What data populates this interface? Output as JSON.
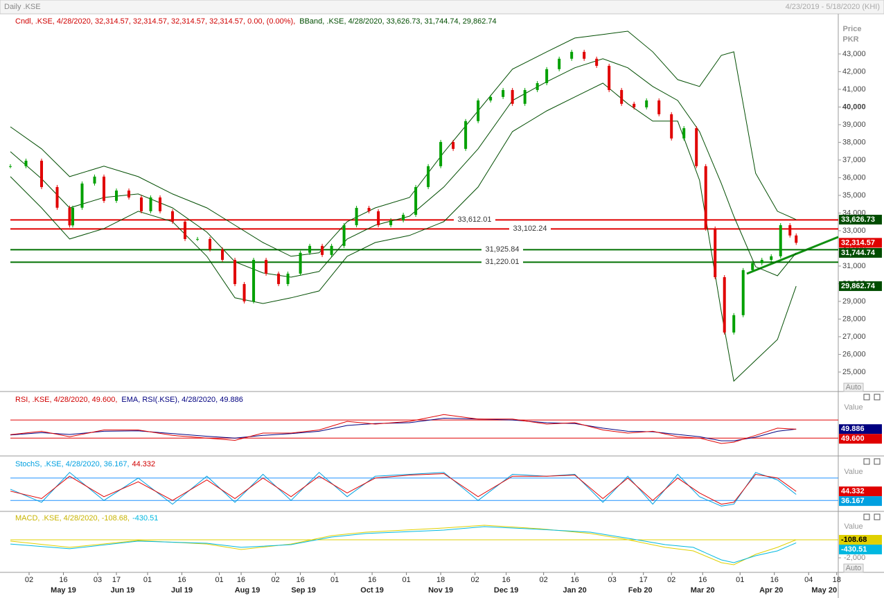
{
  "chart_data": [
    {
      "type": "candlestick",
      "title": "Daily .KSE",
      "subtitle": "4/23/2019 - 5/18/2020 (KHI)",
      "legend": [
        "Cndl, .KSE, 4/28/2020, 32,314.57, 32,314.57, 32,314.57, 32,314.57, 0.00, (0.00%),",
        "BBand, .KSE, 4/28/2020, 33,626.73, 31,744.74, 29,862.74"
      ],
      "y_label": "Price",
      "y_unit": "PKR",
      "scale_mode": "Auto",
      "xlim": [
        0,
        265.5
      ],
      "ylim": [
        23900,
        45270
      ],
      "up_color": "#00a000",
      "down_color": "#e00000",
      "x": [
        0,
        5,
        10,
        15,
        19,
        20,
        23,
        27,
        30,
        34,
        38,
        42,
        45,
        48,
        52,
        56,
        60,
        64,
        68,
        72,
        75,
        78,
        82,
        86,
        89,
        93,
        96,
        100,
        103,
        107,
        111,
        115,
        118,
        122,
        126,
        130,
        134,
        138,
        142,
        146,
        150,
        154,
        158,
        161,
        165,
        169,
        172,
        176,
        180,
        184,
        188,
        192,
        196,
        200,
        204,
        208,
        212,
        216,
        220,
        223,
        226,
        229,
        232,
        235,
        238,
        241,
        244,
        247,
        250,
        252
      ],
      "close": [
        36650,
        36960,
        35470,
        34300,
        33300,
        34300,
        35670,
        36060,
        34690,
        35270,
        34880,
        34100,
        34880,
        34100,
        33510,
        32530,
        32530,
        31940,
        31350,
        29980,
        29000,
        31350,
        30570,
        29980,
        30570,
        31750,
        32140,
        31630,
        32140,
        33310,
        34290,
        34100,
        33310,
        33590,
        33900,
        35470,
        36650,
        38020,
        37630,
        39200,
        40370,
        40570,
        40960,
        40180,
        40960,
        41350,
        42140,
        42730,
        43120,
        42730,
        42330,
        40960,
        40180,
        39980,
        40370,
        39590,
        38220,
        38800,
        36650,
        33120,
        30370,
        27240,
        28220,
        30770,
        31160,
        31350,
        31550,
        33310,
        32730,
        32314.57
      ],
      "close_color": "#e00000",
      "close_label": "32,314.57",
      "bands": {
        "x": [
          0,
          10,
          19,
          30,
          41,
          52,
          63,
          72,
          81,
          90,
          99,
          108,
          117,
          128,
          139,
          150,
          161,
          172,
          181,
          190,
          198,
          206,
          214,
          221,
          228,
          232,
          239,
          246,
          252
        ],
        "color": "#004d00",
        "series": [
          {
            "values": [
              38880,
              37630,
              36060,
              36650,
              36060,
              35080,
              34290,
              33310,
              32330,
              31550,
              31750,
              33510,
              34290,
              34880,
              37430,
              39780,
              42140,
              43120,
              43900,
              44100,
              44290,
              43120,
              41550,
              41160,
              42920,
              43120,
              36250,
              34100,
              33626.73
            ],
            "last_label": "33,626.73",
            "box_color": "#004d00"
          },
          {
            "values": [
              37470,
              35940,
              34290,
              34880,
              35080,
              34290,
              32920,
              31240,
              30610,
              30370,
              30690,
              32530,
              33310,
              33820,
              35470,
              37630,
              40370,
              41430,
              42220,
              42730,
              42220,
              41160,
              40370,
              38610,
              35670,
              33820,
              30960,
              30450,
              31744.74
            ],
            "last_label": "31,744.74",
            "box_color": "#004d00"
          },
          {
            "values": [
              36060,
              34290,
              32530,
              33120,
              34100,
              33510,
              31550,
              29200,
              28880,
              29200,
              29590,
              31550,
              32330,
              32730,
              33510,
              35470,
              38610,
              39780,
              40570,
              41350,
              40180,
              39200,
              39200,
              35860,
              28410,
              24490,
              25670,
              26840,
              29862.74
            ],
            "last_label": "29,862.74",
            "box_color": "#004d00"
          }
        ]
      },
      "levels": [
        {
          "value": 33612.01,
          "label": "33,612.01",
          "color": "#e00000"
        },
        {
          "value": 33102.24,
          "label": "33,102.24",
          "color": "#e00000"
        },
        {
          "value": 31925.84,
          "label": "31,925.84",
          "color": "#007000"
        },
        {
          "value": 31220.01,
          "label": "31,220.01",
          "color": "#007000"
        }
      ],
      "yticks": [
        {
          "value": 25000,
          "label": "25,000"
        },
        {
          "value": 26000,
          "label": "26,000"
        },
        {
          "value": 27000,
          "label": "27,000"
        },
        {
          "value": 28000,
          "label": "28,000"
        },
        {
          "value": 29000,
          "label": "29,000"
        },
        {
          "value": 30000,
          "label": "30,000"
        },
        {
          "value": 31000,
          "label": "31,000"
        },
        {
          "value": 32000,
          "label": "32,000"
        },
        {
          "value": 33000,
          "label": "33,000"
        },
        {
          "value": 34000,
          "label": "34,000"
        },
        {
          "value": 35000,
          "label": "35,000"
        },
        {
          "value": 36000,
          "label": "36,000"
        },
        {
          "value": 37000,
          "label": "37,000"
        },
        {
          "value": 38000,
          "label": "38,000"
        },
        {
          "value": 39000,
          "label": "39,000"
        },
        {
          "value": 40000,
          "label": "40,000",
          "bold": true
        },
        {
          "value": 41000,
          "label": "41,000"
        },
        {
          "value": 42000,
          "label": "42,000"
        },
        {
          "value": 43000,
          "label": "43,000"
        }
      ],
      "xticks": [
        {
          "value": 6,
          "label": "02"
        },
        {
          "value": 17,
          "label": "16"
        },
        {
          "value": 28,
          "label": "03"
        },
        {
          "value": 34,
          "label": "17"
        },
        {
          "value": 44,
          "label": "01"
        },
        {
          "value": 55,
          "label": "16"
        },
        {
          "value": 67,
          "label": "01"
        },
        {
          "value": 74,
          "label": "16"
        },
        {
          "value": 85,
          "label": "02"
        },
        {
          "value": 93,
          "label": "16"
        },
        {
          "value": 104,
          "label": "01"
        },
        {
          "value": 116,
          "label": "16"
        },
        {
          "value": 127,
          "label": "01"
        },
        {
          "value": 138,
          "label": "18"
        },
        {
          "value": 149,
          "label": "02"
        },
        {
          "value": 159,
          "label": "16"
        },
        {
          "value": 171,
          "label": "02"
        },
        {
          "value": 181,
          "label": "16"
        },
        {
          "value": 193,
          "label": "03"
        },
        {
          "value": 203,
          "label": "17"
        },
        {
          "value": 212,
          "label": "02"
        },
        {
          "value": 222,
          "label": "16"
        },
        {
          "value": 234,
          "label": "01"
        },
        {
          "value": 245,
          "label": "16"
        },
        {
          "value": 256,
          "label": "04"
        },
        {
          "value": 265,
          "label": "18"
        }
      ],
      "months": [
        {
          "value": 17,
          "label": "May 19"
        },
        {
          "value": 36,
          "label": "Jun 19"
        },
        {
          "value": 55,
          "label": "Jul 19"
        },
        {
          "value": 76,
          "label": "Aug 19"
        },
        {
          "value": 94,
          "label": "Sep 19"
        },
        {
          "value": 116,
          "label": "Oct 19"
        },
        {
          "value": 138,
          "label": "Nov 19"
        },
        {
          "value": 159,
          "label": "Dec 19"
        },
        {
          "value": 181,
          "label": "Jan 20"
        },
        {
          "value": 202,
          "label": "Feb 20"
        },
        {
          "value": 222,
          "label": "Mar 20"
        },
        {
          "value": 244,
          "label": "Apr 20"
        },
        {
          "value": 261,
          "label": "May 20"
        }
      ]
    },
    {
      "type": "line",
      "legend": [
        "RSI, .KSE, 4/28/2020, 49.600,",
        "EMA, RSI(.KSE), 4/28/2020, 49.886"
      ],
      "value_title": "Value",
      "xlim": [
        0,
        265.5
      ],
      "ylim": [
        -8,
        130
      ],
      "levels": [
        70,
        30
      ],
      "level_color": "#e00000",
      "x": [
        0,
        10,
        19,
        30,
        41,
        52,
        63,
        72,
        81,
        90,
        99,
        108,
        117,
        128,
        139,
        150,
        161,
        172,
        181,
        190,
        198,
        206,
        214,
        221,
        228,
        232,
        239,
        246,
        252
      ],
      "series": [
        {
          "color": "#000080",
          "values": [
            37,
            42,
            38,
            45,
            46,
            40,
            34,
            30,
            36,
            40,
            45,
            58,
            62,
            64,
            74,
            72,
            70,
            64,
            62,
            52,
            45,
            44,
            38,
            33,
            24,
            24,
            32,
            45,
            49.886
          ],
          "last_label": "49.886"
        },
        {
          "color": "#e00000",
          "values": [
            37.7,
            45,
            33,
            48,
            48,
            36,
            30,
            25,
            41,
            41,
            48,
            67,
            61,
            67,
            82,
            72,
            72,
            61,
            64,
            48,
            41,
            45,
            33,
            30,
            18,
            21,
            36,
            52,
            49.6
          ],
          "last_label": "49.600"
        }
      ]
    },
    {
      "type": "line",
      "legend": [
        "StochS, .KSE, 4/28/2020, 36.167,",
        "44.332"
      ],
      "value_title": "Value",
      "xlim": [
        0,
        265.5
      ],
      "ylim": [
        -7.5,
        135.6
      ],
      "levels": [
        80,
        20
      ],
      "level_color": "#1e90ff",
      "x": [
        0,
        10,
        19,
        30,
        41,
        52,
        63,
        72,
        81,
        90,
        99,
        108,
        117,
        128,
        139,
        150,
        161,
        172,
        181,
        190,
        198,
        206,
        214,
        221,
        228,
        232,
        239,
        246,
        252
      ],
      "series": [
        {
          "color": "#00a0e0",
          "values": [
            50,
            15,
            95,
            20,
            80,
            10,
            85,
            15,
            90,
            20,
            95,
            30,
            85,
            90,
            95,
            20,
            90,
            85,
            90,
            15,
            85,
            10,
            90,
            30,
            5,
            10,
            95,
            75,
            36.167
          ],
          "last_label": "36.167"
        },
        {
          "color": "#e00000",
          "values": [
            45,
            25,
            85,
            30,
            70,
            20,
            75,
            25,
            80,
            30,
            85,
            40,
            80,
            88,
            92,
            30,
            85,
            85,
            88,
            25,
            80,
            20,
            80,
            40,
            10,
            15,
            90,
            80,
            44.332
          ],
          "last_label": "44.332"
        }
      ]
    },
    {
      "type": "line",
      "legend": [
        "MACD, .KSE, 4/28/2020, -108.68,",
        "-430.51"
      ],
      "value_title": "Value",
      "xlim": [
        0,
        265.5
      ],
      "ylim": [
        -3455,
        2727
      ],
      "yticks": [
        {
          "value": -2000,
          "label": "-2,000"
        }
      ],
      "scale_mode": "Auto",
      "x": [
        0,
        19,
        41,
        63,
        74,
        90,
        103,
        114,
        139,
        152,
        170,
        186,
        197,
        210,
        219,
        228,
        232,
        239,
        246,
        252
      ],
      "series": [
        {
          "color": "#e0d000",
          "values": [
            -250,
            -900,
            -180,
            -550,
            -1130,
            -550,
            330,
            690,
            1130,
            1420,
            1050,
            550,
            -40,
            -900,
            -1270,
            -2510,
            -2730,
            -1640,
            -900,
            -108.68
          ],
          "last_label": "-108.68",
          "ref_line": true
        },
        {
          "color": "#00b8e0",
          "values": [
            -550,
            -1050,
            -250,
            -470,
            -900,
            -620,
            180,
            550,
            910,
            1270,
            980,
            690,
            110,
            -620,
            -900,
            -2220,
            -2510,
            -1780,
            -1270,
            -430.51
          ],
          "last_label": "-430.51"
        }
      ]
    }
  ]
}
